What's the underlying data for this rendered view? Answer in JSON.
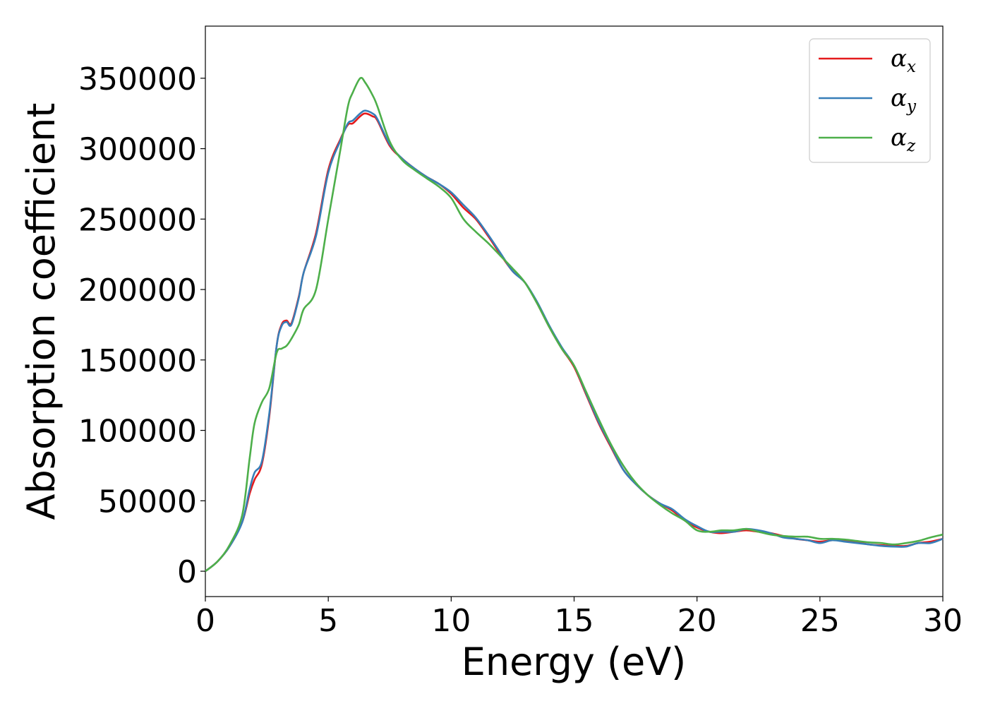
{
  "chart_data": {
    "type": "line",
    "xlabel": "Energy (eV)",
    "ylabel": "Absorption coefficient",
    "xlim": [
      0,
      30
    ],
    "ylim": [
      -18000,
      387000
    ],
    "xticks": [
      0,
      5,
      10,
      15,
      20,
      25,
      30
    ],
    "xtick_labels": [
      "0",
      "5",
      "10",
      "15",
      "20",
      "25",
      "30"
    ],
    "yticks": [
      0,
      50000,
      100000,
      150000,
      200000,
      250000,
      300000,
      350000
    ],
    "ytick_labels": [
      "0",
      "50000",
      "100000",
      "150000",
      "200000",
      "250000",
      "300000",
      "350000"
    ],
    "grid": false,
    "legend_position": "top-right",
    "x": [
      0,
      0.5,
      1,
      1.5,
      1.8,
      2,
      2.3,
      2.6,
      2.9,
      3.1,
      3.3,
      3.5,
      3.8,
      4,
      4.5,
      5,
      5.5,
      5.8,
      6,
      6.3,
      6.5,
      6.8,
      7,
      7.5,
      8,
      8.5,
      9,
      9.5,
      10,
      10.5,
      11,
      11.5,
      12,
      12.5,
      13,
      13.5,
      14,
      14.5,
      15,
      15.5,
      16,
      16.5,
      17,
      17.5,
      18,
      18.5,
      19,
      19.5,
      20,
      20.5,
      21,
      21.5,
      22,
      22.5,
      23,
      23.5,
      24,
      24.5,
      25,
      25.5,
      26,
      26.5,
      27,
      27.5,
      28,
      28.5,
      29,
      29.5,
      30
    ],
    "series": [
      {
        "name": "α",
        "subscript": "x",
        "color": "#e41a1c",
        "values": [
          0,
          7000,
          18000,
          35000,
          55000,
          65000,
          76000,
          110000,
          160000,
          175000,
          178000,
          176000,
          195000,
          212000,
          240000,
          285000,
          307000,
          317000,
          318000,
          323000,
          325000,
          323000,
          320000,
          302000,
          293000,
          286000,
          280000,
          275000,
          268000,
          258000,
          250000,
          238000,
          225000,
          213000,
          205000,
          190000,
          173000,
          158000,
          145000,
          125000,
          105000,
          88000,
          72000,
          62000,
          54000,
          48000,
          43000,
          36000,
          31000,
          28000,
          27000,
          28000,
          29000,
          28000,
          27000,
          25000,
          23000,
          22000,
          21000,
          22000,
          22000,
          21000,
          19000,
          18500,
          18000,
          18000,
          20000,
          21000,
          23000
        ]
      },
      {
        "name": "α",
        "subscript": "y",
        "color": "#377eb8",
        "values": [
          0,
          7000,
          18000,
          35000,
          58000,
          70000,
          78000,
          112000,
          160000,
          174000,
          177000,
          175000,
          194000,
          212000,
          238000,
          283000,
          306000,
          318000,
          320000,
          325000,
          327000,
          325000,
          321000,
          303000,
          293000,
          286000,
          280000,
          275000,
          269000,
          260000,
          251000,
          239000,
          226000,
          213000,
          205000,
          191000,
          174000,
          159000,
          146000,
          126000,
          106000,
          89000,
          72000,
          62000,
          54000,
          48000,
          44000,
          37000,
          32000,
          28000,
          28000,
          28000,
          30000,
          29000,
          27000,
          24000,
          23000,
          22000,
          20000,
          22000,
          21000,
          20000,
          19000,
          18000,
          17500,
          17500,
          20000,
          20000,
          23000
        ]
      },
      {
        "name": "α",
        "subscript": "z",
        "color": "#4daf4a",
        "values": [
          0,
          7000,
          19000,
          40000,
          80000,
          105000,
          120000,
          130000,
          155000,
          158000,
          160000,
          165000,
          175000,
          186000,
          200000,
          250000,
          300000,
          330000,
          340000,
          350000,
          347000,
          338000,
          330000,
          305000,
          292000,
          285000,
          279000,
          273000,
          265000,
          250000,
          241000,
          233000,
          224000,
          215000,
          205000,
          190000,
          173000,
          158000,
          146000,
          127000,
          108000,
          90000,
          75000,
          63000,
          54000,
          47000,
          41000,
          36000,
          29000,
          28000,
          29000,
          29000,
          30000,
          28000,
          26000,
          25000,
          24500,
          24500,
          23000,
          23000,
          22500,
          21500,
          20500,
          20000,
          19000,
          20000,
          21500,
          24000,
          26000
        ]
      }
    ]
  }
}
